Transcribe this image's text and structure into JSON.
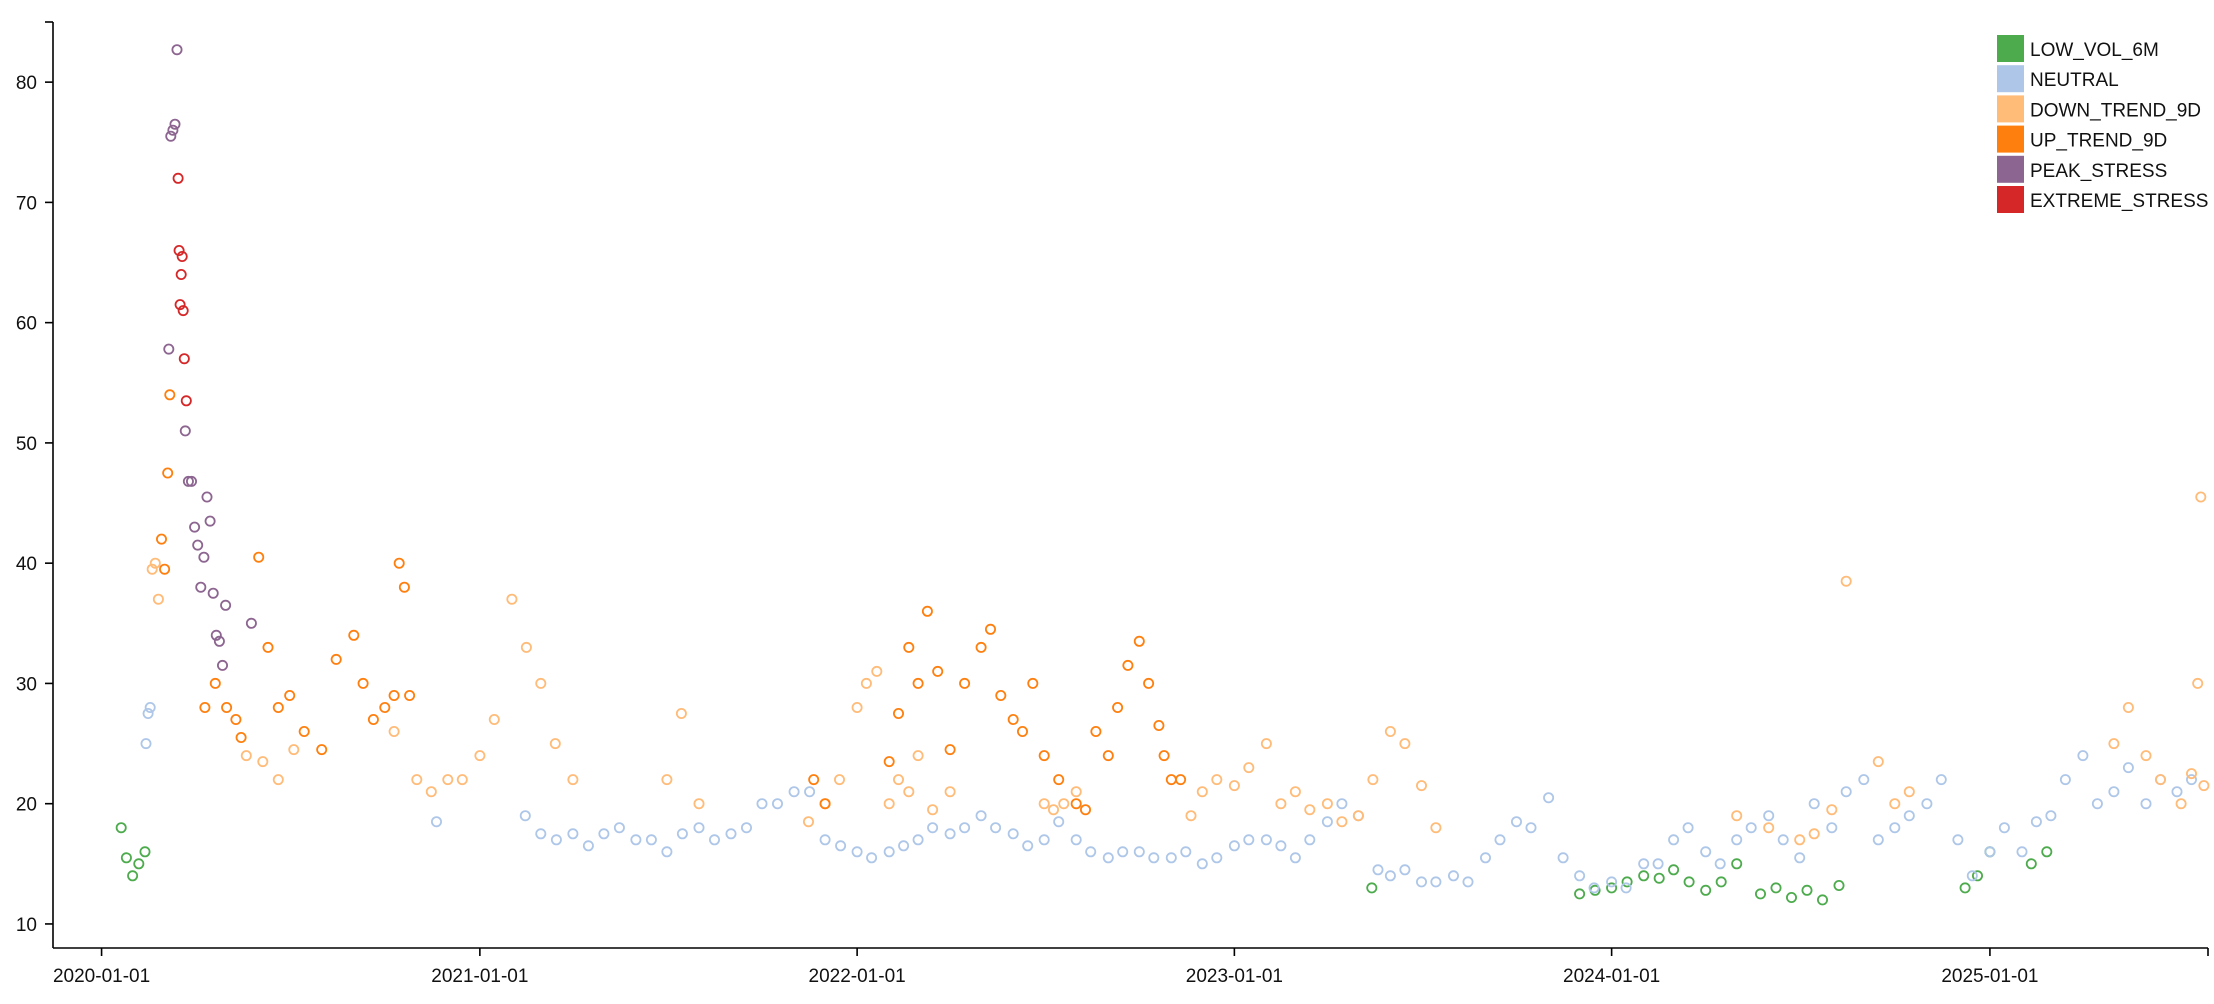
{
  "chart_data": {
    "type": "scatter",
    "title": "",
    "xlabel": "",
    "ylabel": "",
    "x_axis": {
      "type": "date",
      "range": [
        "2019-11-15",
        "2025-07-31"
      ],
      "ticks": [
        "2020-01-01",
        "2021-01-01",
        "2022-01-01",
        "2023-01-01",
        "2024-01-01",
        "2025-01-01"
      ]
    },
    "y_axis": {
      "range": [
        8,
        85
      ],
      "ticks": [
        10,
        20,
        30,
        40,
        50,
        60,
        70,
        80
      ]
    },
    "grid": false,
    "legend_position": "top-right",
    "marker": "hollow-circle",
    "series": [
      {
        "name": "LOW_VOL_6M",
        "color": "#4dab4d",
        "x": [
          "2020-01-20",
          "2020-01-25",
          "2020-01-31",
          "2020-02-06",
          "2020-02-12",
          "2023-05-14",
          "2023-12-01",
          "2023-12-16",
          "2024-01-01",
          "2024-01-16",
          "2024-02-01",
          "2024-02-16",
          "2024-03-01",
          "2024-03-16",
          "2024-04-01",
          "2024-04-16",
          "2024-05-01",
          "2024-05-24",
          "2024-06-08",
          "2024-06-23",
          "2024-07-08",
          "2024-07-23",
          "2024-08-08",
          "2024-12-08",
          "2024-12-20",
          "2025-01-01",
          "2025-02-10",
          "2025-02-25"
        ],
        "y": [
          18,
          15.5,
          14,
          15,
          16,
          13,
          12.5,
          12.8,
          13,
          13.5,
          14,
          13.8,
          14.5,
          13.5,
          12.8,
          13.5,
          15,
          12.5,
          13,
          12.2,
          12.8,
          12,
          13.2,
          13,
          14,
          16,
          15,
          16
        ]
      },
      {
        "name": "NEUTRAL",
        "color": "#aec7e8",
        "x": [
          "2020-02-13",
          "2020-02-15",
          "2020-02-17",
          "2020-11-20",
          "2021-02-14",
          "2021-03-01",
          "2021-03-16",
          "2021-04-01",
          "2021-04-16",
          "2021-05-01",
          "2021-05-16",
          "2021-06-01",
          "2021-06-16",
          "2021-07-01",
          "2021-07-16",
          "2021-08-01",
          "2021-08-16",
          "2021-09-01",
          "2021-09-16",
          "2021-10-01",
          "2021-10-16",
          "2021-11-01",
          "2021-11-16",
          "2021-12-01",
          "2021-12-16",
          "2022-01-01",
          "2022-01-15",
          "2022-02-01",
          "2022-02-15",
          "2022-03-01",
          "2022-03-15",
          "2022-04-01",
          "2022-04-15",
          "2022-05-01",
          "2022-05-15",
          "2022-06-01",
          "2022-06-15",
          "2022-07-01",
          "2022-07-15",
          "2022-08-01",
          "2022-08-15",
          "2022-09-01",
          "2022-09-15",
          "2022-10-01",
          "2022-10-15",
          "2022-11-01",
          "2022-11-15",
          "2022-12-01",
          "2022-12-15",
          "2023-01-01",
          "2023-01-15",
          "2023-02-01",
          "2023-02-15",
          "2023-03-01",
          "2023-03-15",
          "2023-04-01",
          "2023-04-15",
          "2023-05-01",
          "2023-05-20",
          "2023-06-01",
          "2023-06-15",
          "2023-07-01",
          "2023-07-15",
          "2023-08-01",
          "2023-08-15",
          "2023-09-01",
          "2023-09-15",
          "2023-10-01",
          "2023-10-15",
          "2023-11-01",
          "2023-11-15",
          "2023-12-01",
          "2023-12-15",
          "2024-01-01",
          "2024-01-15",
          "2024-02-01",
          "2024-02-15",
          "2024-03-01",
          "2024-03-15",
          "2024-04-01",
          "2024-04-15",
          "2024-05-01",
          "2024-05-15",
          "2024-06-01",
          "2024-06-15",
          "2024-07-01",
          "2024-07-15",
          "2024-08-01",
          "2024-08-15",
          "2024-09-01",
          "2024-09-15",
          "2024-10-01",
          "2024-10-15",
          "2024-11-01",
          "2024-11-15",
          "2024-12-01",
          "2024-12-15",
          "2025-01-01",
          "2025-01-15",
          "2025-02-01",
          "2025-02-15",
          "2025-03-01",
          "2025-03-15",
          "2025-04-01",
          "2025-04-15",
          "2025-05-01",
          "2025-05-15",
          "2025-06-01",
          "2025-06-15",
          "2025-07-01",
          "2025-07-15"
        ],
        "y": [
          25,
          27.5,
          28,
          18.5,
          19,
          17.5,
          17,
          17.5,
          16.5,
          17.5,
          18,
          17,
          17,
          16,
          17.5,
          18,
          17,
          17.5,
          18,
          20,
          20,
          21,
          21,
          17,
          16.5,
          16,
          15.5,
          16,
          16.5,
          17,
          18,
          17.5,
          18,
          19,
          18,
          17.5,
          16.5,
          17,
          18.5,
          17,
          16,
          15.5,
          16,
          16,
          15.5,
          15.5,
          16,
          15,
          15.5,
          16.5,
          17,
          17,
          16.5,
          15.5,
          17,
          18.5,
          20,
          19,
          14.5,
          14,
          14.5,
          13.5,
          13.5,
          14,
          13.5,
          15.5,
          17,
          18.5,
          18,
          20.5,
          15.5,
          14,
          13,
          13.5,
          13,
          15,
          15,
          17,
          18,
          16,
          15,
          17,
          18,
          19,
          17,
          15.5,
          20,
          18,
          21,
          22,
          17,
          18,
          19,
          20,
          22,
          17,
          14,
          16,
          18,
          16,
          18.5,
          19,
          22,
          24,
          20,
          21,
          23,
          20,
          22,
          21,
          22
        ]
      },
      {
        "name": "DOWN_TREND_9D",
        "color": "#ffbb78",
        "x": [
          "2020-02-19",
          "2020-02-22",
          "2020-02-25",
          "2020-05-20",
          "2020-06-05",
          "2020-06-20",
          "2020-07-05",
          "2020-10-10",
          "2020-11-01",
          "2020-11-15",
          "2020-12-01",
          "2020-12-15",
          "2021-01-01",
          "2021-01-15",
          "2021-02-01",
          "2021-02-15",
          "2021-03-01",
          "2021-03-15",
          "2021-04-01",
          "2021-07-01",
          "2021-07-15",
          "2021-08-01",
          "2021-11-15",
          "2021-12-01",
          "2021-12-15",
          "2022-01-01",
          "2022-01-10",
          "2022-01-20",
          "2022-02-01",
          "2022-02-10",
          "2022-02-20",
          "2022-03-01",
          "2022-03-15",
          "2022-04-01",
          "2022-07-01",
          "2022-07-10",
          "2022-07-20",
          "2022-08-01",
          "2022-11-20",
          "2022-12-01",
          "2022-12-15",
          "2023-01-01",
          "2023-01-15",
          "2023-02-01",
          "2023-02-15",
          "2023-03-01",
          "2023-03-15",
          "2023-04-01",
          "2023-04-15",
          "2023-05-01",
          "2023-05-15",
          "2023-06-01",
          "2023-06-15",
          "2023-07-01",
          "2023-07-15",
          "2024-05-01",
          "2024-06-01",
          "2024-07-01",
          "2024-07-15",
          "2024-08-01",
          "2024-08-15",
          "2024-09-15",
          "2024-10-01",
          "2024-10-15",
          "2025-05-01",
          "2025-05-15",
          "2025-06-01",
          "2025-06-15",
          "2025-07-05",
          "2025-07-15",
          "2025-07-21",
          "2025-07-24",
          "2025-07-27"
        ],
        "y": [
          39.5,
          40,
          37,
          24,
          23.5,
          22,
          24.5,
          26,
          22,
          21,
          22,
          22,
          24,
          27,
          37,
          33,
          30,
          25,
          22,
          22,
          27.5,
          20,
          18.5,
          20,
          22,
          28,
          30,
          31,
          20,
          22,
          21,
          24,
          19.5,
          21,
          20,
          19.5,
          20,
          21,
          19,
          21,
          22,
          21.5,
          23,
          25,
          20,
          21,
          19.5,
          20,
          18.5,
          19,
          22,
          26,
          25,
          21.5,
          18,
          19,
          18,
          17,
          17.5,
          19.5,
          38.5,
          23.5,
          20,
          21,
          25,
          28,
          24,
          22,
          20,
          22.5,
          30,
          45.5,
          21.5
        ]
      },
      {
        "name": "UP_TREND_9D",
        "color": "#ff7f0e",
        "x": [
          "2020-02-28",
          "2020-03-02",
          "2020-03-05",
          "2020-03-07",
          "2020-04-10",
          "2020-04-20",
          "2020-05-01",
          "2020-05-10",
          "2020-05-15",
          "2020-06-01",
          "2020-06-10",
          "2020-06-20",
          "2020-07-01",
          "2020-07-15",
          "2020-08-01",
          "2020-08-15",
          "2020-09-01",
          "2020-09-10",
          "2020-09-20",
          "2020-10-01",
          "2020-10-10",
          "2020-10-15",
          "2020-10-20",
          "2020-10-25",
          "2021-11-20",
          "2021-12-01",
          "2022-02-01",
          "2022-02-10",
          "2022-02-20",
          "2022-03-01",
          "2022-03-10",
          "2022-03-20",
          "2022-04-01",
          "2022-04-15",
          "2022-05-01",
          "2022-05-10",
          "2022-05-20",
          "2022-06-01",
          "2022-06-10",
          "2022-06-20",
          "2022-07-01",
          "2022-07-15",
          "2022-08-01",
          "2022-08-10",
          "2022-08-20",
          "2022-09-01",
          "2022-09-10",
          "2022-09-20",
          "2022-10-01",
          "2022-10-10",
          "2022-10-20",
          "2022-10-25",
          "2022-11-01",
          "2022-11-10"
        ],
        "y": [
          42,
          39.5,
          47.5,
          54,
          28,
          30,
          28,
          27,
          25.5,
          40.5,
          33,
          28,
          29,
          26,
          24.5,
          32,
          34,
          30,
          27,
          28,
          29,
          40,
          38,
          29,
          22,
          20,
          23.5,
          27.5,
          33,
          30,
          36,
          31,
          24.5,
          30,
          33,
          34.5,
          29,
          27,
          26,
          30,
          24,
          22,
          20,
          19.5,
          26,
          24,
          28,
          31.5,
          33.5,
          30,
          26.5,
          24,
          22,
          22
        ]
      },
      {
        "name": "PEAK_STRESS",
        "color": "#8c6590",
        "x": [
          "2020-03-06",
          "2020-03-08",
          "2020-03-10",
          "2020-03-12",
          "2020-03-14",
          "2020-03-22",
          "2020-03-25",
          "2020-03-28",
          "2020-03-31",
          "2020-04-03",
          "2020-04-06",
          "2020-04-09",
          "2020-04-12",
          "2020-04-15",
          "2020-04-18",
          "2020-04-21",
          "2020-04-24",
          "2020-04-27",
          "2020-04-30",
          "2020-05-25"
        ],
        "y": [
          57.8,
          75.5,
          76,
          76.5,
          82.7,
          51,
          46.8,
          46.8,
          43,
          41.5,
          38,
          40.5,
          45.5,
          43.5,
          37.5,
          34,
          33.5,
          31.5,
          36.5,
          35
        ]
      },
      {
        "name": "EXTREME_STRESS",
        "color": "#d62728",
        "x": [
          "2020-03-15",
          "2020-03-16",
          "2020-03-17",
          "2020-03-18",
          "2020-03-19",
          "2020-03-20",
          "2020-03-21",
          "2020-03-23"
        ],
        "y": [
          72,
          66,
          61.5,
          64,
          65.5,
          61,
          57,
          53.5
        ]
      }
    ]
  }
}
